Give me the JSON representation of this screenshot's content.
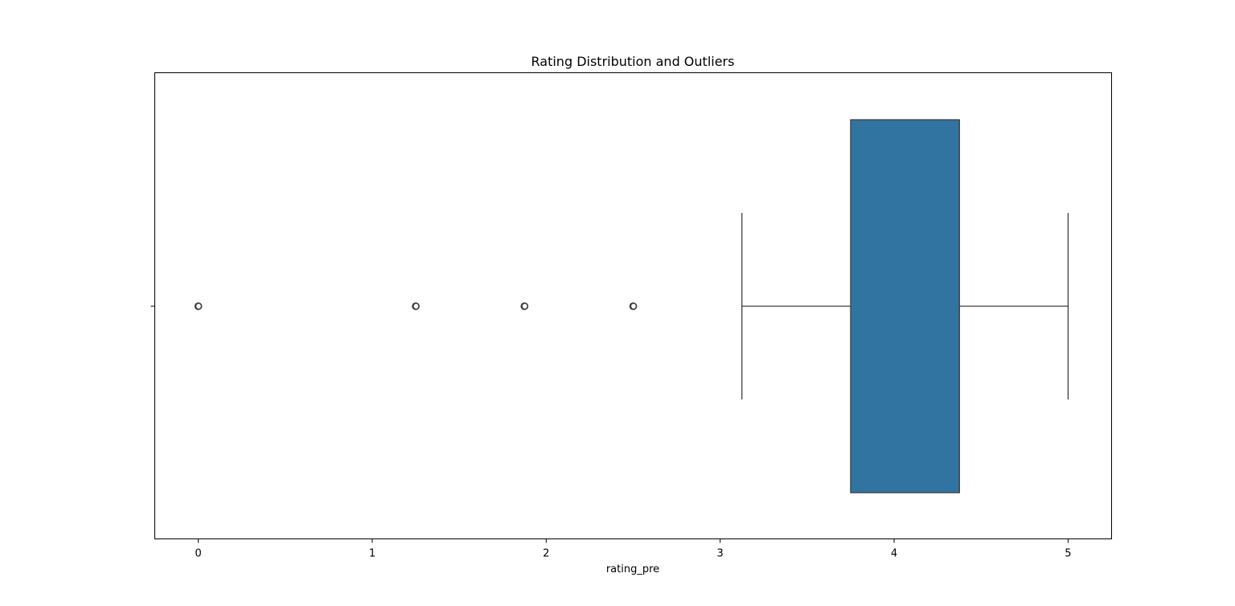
{
  "chart_data": {
    "type": "boxplot",
    "title": "Rating Distribution and Outliers",
    "xlabel": "rating_pre",
    "ylabel": "",
    "orientation": "horizontal",
    "xlim": [
      -0.25,
      5.25
    ],
    "x_ticks": [
      0,
      1,
      2,
      3,
      4,
      5
    ],
    "grid": false,
    "box": {
      "whisker_low": 3.125,
      "q1": 3.75,
      "median": 4.375,
      "q3": 4.375,
      "whisker_high": 5.0,
      "outliers": [
        0.0,
        1.25,
        1.875,
        2.5
      ]
    },
    "colors": {
      "box_fill": "#3274a1",
      "line": "#3d3d3d",
      "outlier_edge": "#3d3d3d",
      "axes": "#000000"
    }
  }
}
